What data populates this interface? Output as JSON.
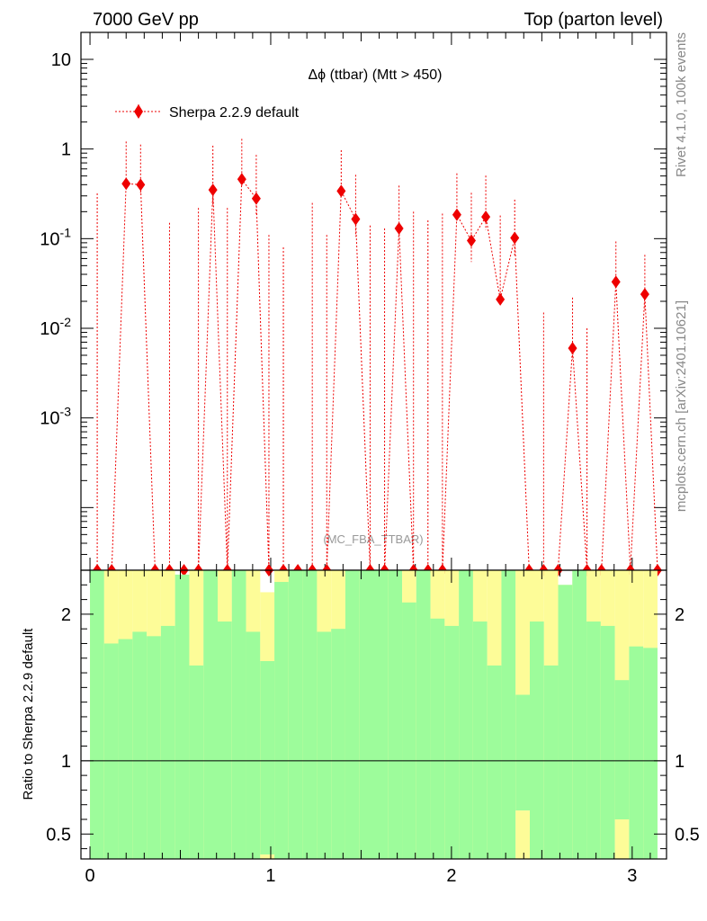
{
  "header": {
    "left": "7000 GeV pp",
    "right": "Top (parton level)"
  },
  "side_labels": {
    "rivet": "Rivet 4.1.0,  100k events",
    "mcplots": "mcplots.cern.ch [arXiv:2401.10621]"
  },
  "colors": {
    "series": "#ee0000",
    "band_inner": "#9dfc9b",
    "band_outer": "#fdfc98",
    "ratio_line": "#000000"
  },
  "chart_data": [
    {
      "type": "line",
      "title": "Δϕ (ttbar) (Mtt > 450)",
      "analysis_label": "(MC_FBA_TTBAR)",
      "yscale": "log",
      "xlim": [
        -0.05,
        3.19
      ],
      "ylim": [
        2e-05,
        20
      ],
      "legend": {
        "entry": "Sherpa 2.2.9 default",
        "placement": "top-left"
      },
      "y_ticks": [
        {
          "base": "10",
          "exp": "-3",
          "value": 0.001
        },
        {
          "base": "10",
          "exp": "-2",
          "value": 0.01
        },
        {
          "base": "10",
          "exp": "-1",
          "value": 0.1
        },
        {
          "base": "1",
          "exp": "",
          "value": 1
        },
        {
          "base": "10",
          "exp": "",
          "value": 10
        }
      ],
      "series": [
        {
          "name": "Sherpa 2.2.9 default",
          "x": [
            0.04,
            0.12,
            0.2,
            0.28,
            0.36,
            0.44,
            0.52,
            0.6,
            0.68,
            0.76,
            0.84,
            0.92,
            0.99,
            1.07,
            1.15,
            1.23,
            1.31,
            1.39,
            1.47,
            1.55,
            1.63,
            1.71,
            1.79,
            1.87,
            1.95,
            2.03,
            2.11,
            2.19,
            2.27,
            2.35,
            2.43,
            2.51,
            2.59,
            2.67,
            2.75,
            2.83,
            2.91,
            2.99,
            3.07,
            3.14
          ],
          "y": [
            0,
            0,
            0.41,
            0.4,
            0,
            0,
            0,
            0,
            0.35,
            0,
            0.46,
            0.28,
            0,
            0,
            0,
            0,
            0,
            0.34,
            0.165,
            0,
            0,
            0.13,
            0,
            0,
            0,
            0.185,
            0.095,
            0.175,
            0.021,
            0.102,
            0,
            0,
            0,
            0.006,
            0,
            0,
            0.033,
            0,
            0.024,
            0
          ],
          "y_err_up": [
            0.32,
            0,
            0.8,
            0.72,
            0,
            0.15,
            0,
            0.22,
            0.74,
            0.22,
            0.84,
            0.58,
            0.11,
            0.08,
            0,
            0.25,
            0.11,
            0.63,
            0.35,
            0.14,
            0.13,
            0.26,
            0.2,
            0.16,
            0.19,
            0.35,
            0.23,
            0.33,
            0.16,
            0.17,
            0,
            0.015,
            0,
            0.016,
            0.01,
            0,
            0.06,
            0,
            0.042,
            0
          ],
          "y_err_down": [
            0,
            0,
            0.012,
            0.075,
            0,
            0,
            0,
            0,
            0.11,
            0,
            0.075,
            0.1,
            0,
            0,
            0,
            0,
            0,
            0.05,
            0.06,
            0,
            0,
            0.02,
            0,
            0,
            0,
            0.02,
            0.04,
            0.05,
            0.003,
            0.04,
            0,
            0,
            0,
            0.0015,
            0,
            0,
            0.005,
            0,
            0.008,
            0
          ]
        }
      ]
    },
    {
      "type": "area",
      "ylabel": "Ratio to Sherpa 2.2.9 default",
      "xlim": [
        -0.05,
        3.19
      ],
      "ylim": [
        0.33,
        2.3
      ],
      "x_ticks": [
        0,
        1,
        2,
        3
      ],
      "y_ticks": [
        0.5,
        1,
        2
      ],
      "bin_width": 0.0785,
      "x_start": 0,
      "series": [
        {
          "name": "band",
          "inner_low": [
            0.33,
            0.33,
            0.33,
            0.33,
            0.33,
            0.33,
            0.33,
            0.33,
            0.33,
            0.33,
            0.33,
            0.33,
            0.33,
            0.33,
            0.33,
            0.33,
            0.33,
            0.33,
            0.33,
            0.33,
            0.33,
            0.33,
            0.33,
            0.33,
            0.33,
            0.33,
            0.33,
            0.33,
            0.33,
            0.33,
            0.33,
            0.33,
            0.33,
            0.33,
            0.33,
            0.33,
            0.33,
            0.33,
            0.33,
            0.33
          ],
          "inner_high": [
            2.3,
            2.3,
            2.3,
            2.3,
            2.3,
            2.3,
            2.3,
            2.3,
            2.3,
            2.3,
            2.3,
            2.3,
            2.3,
            2.3,
            2.3,
            2.3,
            2.3,
            2.3,
            2.3,
            2.3,
            2.3,
            2.3,
            2.3,
            2.3,
            2.3,
            2.3,
            2.3,
            2.3,
            2.3,
            2.3,
            2.15,
            2.3,
            2.3,
            2.3,
            2.3,
            2.3,
            2.3,
            2.15,
            2.3,
            2.3
          ],
          "outer_low": [
            0.33,
            0.33,
            0.33,
            0.33,
            0.33,
            0.33,
            0.33,
            0.33,
            0.33,
            0.33,
            0.33,
            0.33,
            0.33,
            0.33,
            0.33,
            0.33,
            0.33,
            0.33,
            0.33,
            0.33,
            0.33,
            0.33,
            0.33,
            0.33,
            0.33,
            0.33,
            0.33,
            0.33,
            0.33,
            0.33,
            0.33,
            0.33,
            0.33,
            0.33,
            0.33,
            0.33,
            0.33,
            0.33,
            0.33,
            0.33
          ],
          "outer_high": [
            2.3,
            2.3,
            2.3,
            2.3,
            2.3,
            2.3,
            2.3,
            2.3,
            2.3,
            2.3,
            2.3,
            2.3,
            2.3,
            2.3,
            2.3,
            2.3,
            2.3,
            2.3,
            2.3,
            2.3,
            2.3,
            2.3,
            2.3,
            2.3,
            2.3,
            2.3,
            2.3,
            2.3,
            2.3,
            2.3,
            2.3,
            2.3,
            2.3,
            2.3,
            2.3,
            2.3,
            2.3,
            2.3,
            2.3,
            2.3
          ],
          "inner_cap": [
            2.3,
            1.8,
            1.83,
            1.88,
            1.85,
            1.92,
            2.3,
            1.65,
            2.3,
            1.95,
            2.3,
            1.88,
            1.68,
            2.22,
            2.3,
            2.3,
            1.88,
            1.9,
            2.3,
            2.3,
            2.3,
            2.3,
            2.08,
            2.3,
            1.97,
            1.92,
            2.3,
            1.95,
            1.65,
            2.3,
            1.45,
            1.95,
            1.65,
            2.3,
            2.3,
            1.95,
            1.92,
            1.55,
            1.78,
            1.77
          ],
          "outer_cap": [
            2.3,
            2.3,
            2.3,
            2.3,
            2.3,
            2.3,
            2.27,
            2.3,
            2.3,
            2.3,
            2.3,
            2.3,
            2.15,
            2.3,
            2.3,
            2.3,
            2.3,
            2.3,
            2.3,
            2.3,
            2.3,
            2.3,
            2.3,
            2.3,
            2.3,
            2.3,
            2.3,
            2.3,
            2.3,
            2.3,
            2.3,
            2.3,
            2.3,
            2.2,
            2.3,
            2.3,
            2.3,
            2.3,
            2.3,
            2.3
          ],
          "outer_floor": [
            0.33,
            0.33,
            0.33,
            0.33,
            0.33,
            0.33,
            0.33,
            0.33,
            0.33,
            0.33,
            0.33,
            0.33,
            0.36,
            0.33,
            0.33,
            0.33,
            0.33,
            0.33,
            0.33,
            0.33,
            0.33,
            0.33,
            0.33,
            0.33,
            0.33,
            0.33,
            0.33,
            0.33,
            0.33,
            0.33,
            0.66,
            0.33,
            0.33,
            0.33,
            0.33,
            0.33,
            0.33,
            0.6,
            0.33,
            0.33
          ]
        }
      ]
    }
  ]
}
